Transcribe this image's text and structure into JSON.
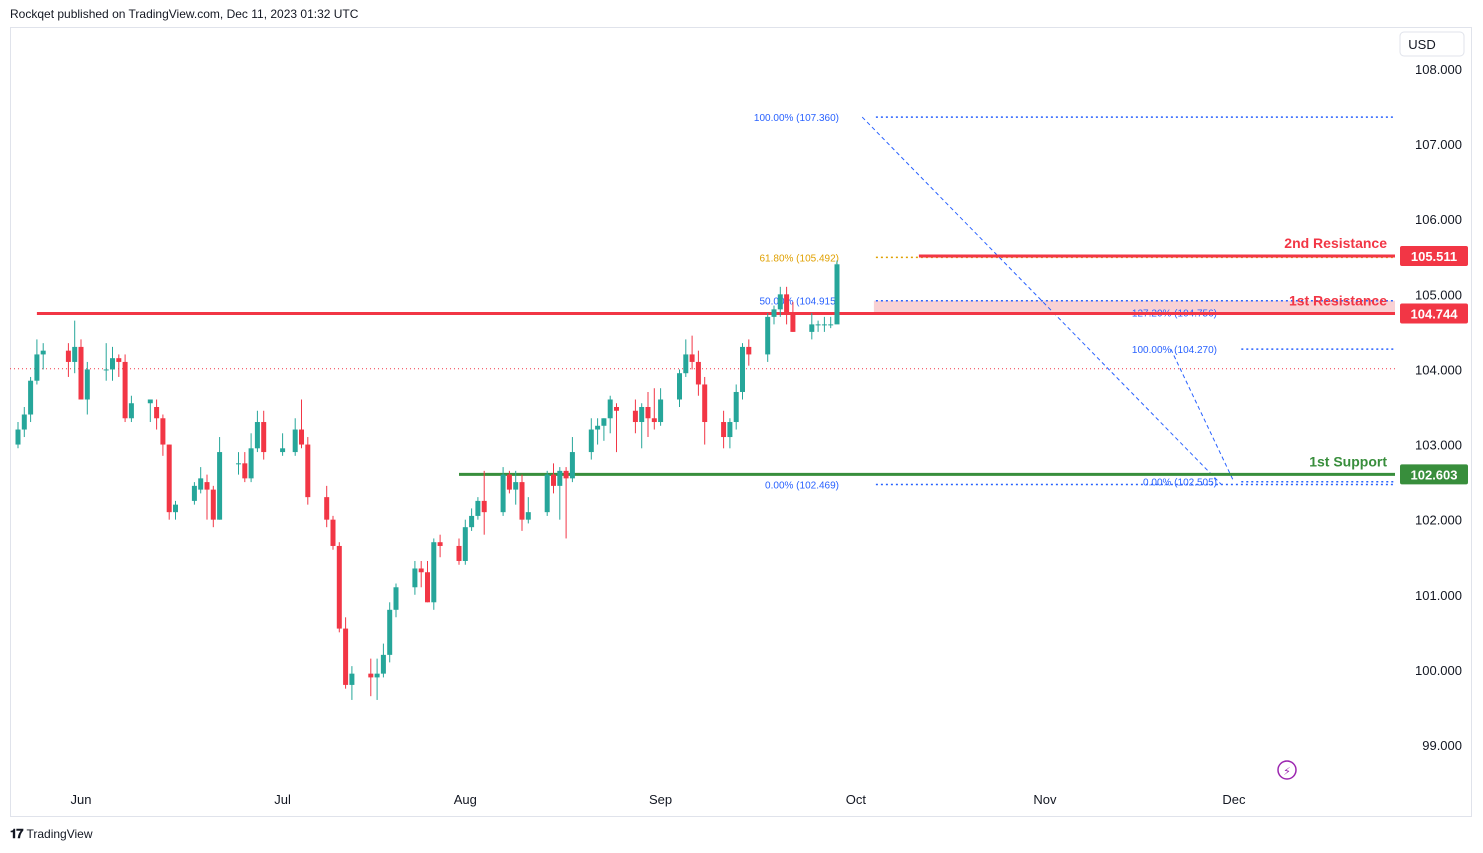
{
  "header": {
    "text": "Rockqet published on TradingView.com, Dec 11, 2023 01:32 UTC"
  },
  "footer": {
    "brand": "TradingView",
    "logo_icon": "tradingview-logo-icon"
  },
  "currency": "USD",
  "colors": {
    "up": "#26a69a",
    "down": "#f23645",
    "resistance": "#f23645",
    "support": "#388e3c",
    "fib": "#2962ff",
    "fib_gold": "#e0a000",
    "dots": "#f23645"
  },
  "chart_data": {
    "type": "candlestick",
    "x_labels": [
      {
        "label": "Jun",
        "date": "2023-06-01"
      },
      {
        "label": "Jul",
        "date": "2023-07-03"
      },
      {
        "label": "Aug",
        "date": "2023-08-01"
      },
      {
        "label": "Sep",
        "date": "2023-09-01"
      },
      {
        "label": "Oct",
        "date": "2023-10-02"
      },
      {
        "label": "Nov",
        "date": "2023-11-01"
      },
      {
        "label": "Dec",
        "date": "2023-12-01"
      }
    ],
    "y_ticks": [
      "108.000",
      "107.000",
      "106.000",
      "105.000",
      "104.000",
      "103.000",
      "102.000",
      "101.000",
      "100.000",
      "99.000"
    ],
    "ylim": [
      98.3,
      108.6
    ],
    "grid": false,
    "last_price": 104.01,
    "levels": [
      {
        "label": "2nd Resistance",
        "value": 105.511,
        "value_text": "105.511",
        "color": "#f23645",
        "from_date": "2023-10-12"
      },
      {
        "label": "1st Resistance",
        "value": 104.744,
        "value_text": "104.744",
        "color": "#f23645",
        "from_date": "2023-05-25"
      },
      {
        "label": "1st Support",
        "value": 102.603,
        "value_text": "102.603",
        "color": "#388e3c",
        "from_date": "2023-07-31"
      }
    ],
    "fib_labels": [
      {
        "text": "100.00% (107.360)",
        "value": 107.36,
        "date": "2023-09-29",
        "color": "#2962ff"
      },
      {
        "text": "61.80% (105.492)",
        "value": 105.492,
        "date": "2023-09-29",
        "color": "#e0a000"
      },
      {
        "text": "50.00% (104.915)",
        "value": 104.915,
        "date": "2023-09-29",
        "color": "#2962ff"
      },
      {
        "text": "0.00% (102.469)",
        "value": 102.469,
        "date": "2023-09-29",
        "color": "#2962ff"
      },
      {
        "text": "127.20% (104.756)",
        "value": 104.756,
        "date": "2023-11-28",
        "color": "#2962ff"
      },
      {
        "text": "100.00% (104.270)",
        "value": 104.27,
        "date": "2023-11-28",
        "color": "#2962ff"
      },
      {
        "text": "0.00% (102.505)",
        "value": 102.505,
        "date": "2023-11-28",
        "color": "#2962ff"
      }
    ],
    "candles": [
      {
        "d": "2023-05-22",
        "o": 103.0,
        "h": 103.3,
        "l": 102.95,
        "c": 103.2
      },
      {
        "d": "2023-05-23",
        "o": 103.2,
        "h": 103.5,
        "l": 103.1,
        "c": 103.4
      },
      {
        "d": "2023-05-24",
        "o": 103.4,
        "h": 103.9,
        "l": 103.3,
        "c": 103.85
      },
      {
        "d": "2023-05-25",
        "o": 103.85,
        "h": 104.4,
        "l": 103.8,
        "c": 104.2
      },
      {
        "d": "2023-05-26",
        "o": 104.2,
        "h": 104.35,
        "l": 104.0,
        "c": 104.25
      },
      {
        "d": "2023-05-30",
        "o": 104.25,
        "h": 104.35,
        "l": 103.9,
        "c": 104.1
      },
      {
        "d": "2023-05-31",
        "o": 104.1,
        "h": 104.65,
        "l": 103.95,
        "c": 104.3
      },
      {
        "d": "2023-06-01",
        "o": 104.3,
        "h": 104.4,
        "l": 103.6,
        "c": 103.6
      },
      {
        "d": "2023-06-02",
        "o": 103.6,
        "h": 104.1,
        "l": 103.4,
        "c": 104.0
      },
      {
        "d": "2023-06-05",
        "o": 104.0,
        "h": 104.35,
        "l": 103.85,
        "c": 104.0
      },
      {
        "d": "2023-06-06",
        "o": 104.0,
        "h": 104.3,
        "l": 103.85,
        "c": 104.15
      },
      {
        "d": "2023-06-07",
        "o": 104.15,
        "h": 104.2,
        "l": 103.9,
        "c": 104.1
      },
      {
        "d": "2023-06-08",
        "o": 104.1,
        "h": 104.2,
        "l": 103.3,
        "c": 103.35
      },
      {
        "d": "2023-06-09",
        "o": 103.35,
        "h": 103.65,
        "l": 103.3,
        "c": 103.55
      },
      {
        "d": "2023-06-12",
        "o": 103.55,
        "h": 103.6,
        "l": 103.3,
        "c": 103.6
      },
      {
        "d": "2023-06-13",
        "o": 103.5,
        "h": 103.6,
        "l": 103.2,
        "c": 103.35
      },
      {
        "d": "2023-06-14",
        "o": 103.35,
        "h": 103.4,
        "l": 102.85,
        "c": 103.0
      },
      {
        "d": "2023-06-15",
        "o": 103.0,
        "h": 103.0,
        "l": 102.0,
        "c": 102.1
      },
      {
        "d": "2023-06-16",
        "o": 102.1,
        "h": 102.25,
        "l": 102.0,
        "c": 102.2
      },
      {
        "d": "2023-06-19",
        "o": 102.25,
        "h": 102.5,
        "l": 102.2,
        "c": 102.45
      },
      {
        "d": "2023-06-20",
        "o": 102.4,
        "h": 102.7,
        "l": 102.35,
        "c": 102.55
      },
      {
        "d": "2023-06-21",
        "o": 102.5,
        "h": 102.6,
        "l": 102.0,
        "c": 102.4
      },
      {
        "d": "2023-06-22",
        "o": 102.4,
        "h": 102.45,
        "l": 101.9,
        "c": 102.0
      },
      {
        "d": "2023-06-23",
        "o": 102.0,
        "h": 103.1,
        "l": 102.0,
        "c": 102.9
      },
      {
        "d": "2023-06-26",
        "o": 102.75,
        "h": 102.9,
        "l": 102.6,
        "c": 102.75
      },
      {
        "d": "2023-06-27",
        "o": 102.75,
        "h": 102.9,
        "l": 102.5,
        "c": 102.55
      },
      {
        "d": "2023-06-28",
        "o": 102.55,
        "h": 103.15,
        "l": 102.5,
        "c": 102.95
      },
      {
        "d": "2023-06-29",
        "o": 102.95,
        "h": 103.45,
        "l": 102.9,
        "c": 103.3
      },
      {
        "d": "2023-06-30",
        "o": 103.3,
        "h": 103.45,
        "l": 102.8,
        "c": 102.9
      },
      {
        "d": "2023-07-03",
        "o": 102.9,
        "h": 103.15,
        "l": 102.85,
        "c": 102.95
      },
      {
        "d": "2023-07-05",
        "o": 102.9,
        "h": 103.35,
        "l": 102.85,
        "c": 103.2
      },
      {
        "d": "2023-07-06",
        "o": 103.2,
        "h": 103.6,
        "l": 102.95,
        "c": 103.0
      },
      {
        "d": "2023-07-07",
        "o": 103.0,
        "h": 103.1,
        "l": 102.2,
        "c": 102.3
      },
      {
        "d": "2023-07-10",
        "o": 102.3,
        "h": 102.45,
        "l": 101.9,
        "c": 102.0
      },
      {
        "d": "2023-07-11",
        "o": 102.0,
        "h": 102.05,
        "l": 101.6,
        "c": 101.65
      },
      {
        "d": "2023-07-12",
        "o": 101.65,
        "h": 101.7,
        "l": 100.5,
        "c": 100.55
      },
      {
        "d": "2023-07-13",
        "o": 100.55,
        "h": 100.7,
        "l": 99.75,
        "c": 99.8
      },
      {
        "d": "2023-07-14",
        "o": 99.8,
        "h": 100.05,
        "l": 99.6,
        "c": 99.95
      },
      {
        "d": "2023-07-17",
        "o": 99.95,
        "h": 100.15,
        "l": 99.65,
        "c": 99.9
      },
      {
        "d": "2023-07-18",
        "o": 99.9,
        "h": 100.15,
        "l": 99.6,
        "c": 99.95
      },
      {
        "d": "2023-07-19",
        "o": 99.95,
        "h": 100.35,
        "l": 99.9,
        "c": 100.2
      },
      {
        "d": "2023-07-20",
        "o": 100.2,
        "h": 100.9,
        "l": 100.1,
        "c": 100.8
      },
      {
        "d": "2023-07-21",
        "o": 100.8,
        "h": 101.15,
        "l": 100.7,
        "c": 101.1
      },
      {
        "d": "2023-07-24",
        "o": 101.1,
        "h": 101.45,
        "l": 101.0,
        "c": 101.35
      },
      {
        "d": "2023-07-25",
        "o": 101.35,
        "h": 101.45,
        "l": 101.1,
        "c": 101.3
      },
      {
        "d": "2023-07-26",
        "o": 101.3,
        "h": 101.45,
        "l": 100.9,
        "c": 100.9
      },
      {
        "d": "2023-07-27",
        "o": 100.9,
        "h": 101.75,
        "l": 100.8,
        "c": 101.7
      },
      {
        "d": "2023-07-28",
        "o": 101.7,
        "h": 101.8,
        "l": 101.5,
        "c": 101.65
      },
      {
        "d": "2023-07-31",
        "o": 101.65,
        "h": 101.75,
        "l": 101.4,
        "c": 101.45
      },
      {
        "d": "2023-08-01",
        "o": 101.45,
        "h": 102.0,
        "l": 101.4,
        "c": 101.9
      },
      {
        "d": "2023-08-02",
        "o": 101.9,
        "h": 102.15,
        "l": 101.85,
        "c": 102.05
      },
      {
        "d": "2023-08-03",
        "o": 102.05,
        "h": 102.3,
        "l": 102.0,
        "c": 102.25
      },
      {
        "d": "2023-08-04",
        "o": 102.25,
        "h": 102.65,
        "l": 101.8,
        "c": 102.1
      },
      {
        "d": "2023-08-07",
        "o": 102.1,
        "h": 102.7,
        "l": 102.05,
        "c": 102.6
      },
      {
        "d": "2023-08-08",
        "o": 102.6,
        "h": 102.65,
        "l": 102.35,
        "c": 102.4
      },
      {
        "d": "2023-08-09",
        "o": 102.4,
        "h": 102.65,
        "l": 102.2,
        "c": 102.5
      },
      {
        "d": "2023-08-10",
        "o": 102.5,
        "h": 102.6,
        "l": 101.85,
        "c": 102.0
      },
      {
        "d": "2023-08-11",
        "o": 102.0,
        "h": 102.3,
        "l": 101.95,
        "c": 102.1
      },
      {
        "d": "2023-08-14",
        "o": 102.1,
        "h": 102.65,
        "l": 102.05,
        "c": 102.6
      },
      {
        "d": "2023-08-15",
        "o": 102.6,
        "h": 102.75,
        "l": 102.35,
        "c": 102.45
      },
      {
        "d": "2023-08-16",
        "o": 102.45,
        "h": 102.7,
        "l": 102.0,
        "c": 102.65
      },
      {
        "d": "2023-08-17",
        "o": 102.65,
        "h": 102.7,
        "l": 101.75,
        "c": 102.55
      },
      {
        "d": "2023-08-18",
        "o": 102.55,
        "h": 103.1,
        "l": 102.5,
        "c": 102.9
      },
      {
        "d": "2023-08-21",
        "o": 102.9,
        "h": 103.35,
        "l": 102.8,
        "c": 103.2
      },
      {
        "d": "2023-08-22",
        "o": 103.2,
        "h": 103.35,
        "l": 103.0,
        "c": 103.25
      },
      {
        "d": "2023-08-23",
        "o": 103.25,
        "h": 103.35,
        "l": 103.05,
        "c": 103.35
      },
      {
        "d": "2023-08-24",
        "o": 103.35,
        "h": 103.65,
        "l": 103.15,
        "c": 103.6
      },
      {
        "d": "2023-08-25",
        "o": 103.5,
        "h": 103.55,
        "l": 102.9,
        "c": 103.45
      },
      {
        "d": "2023-08-28",
        "o": 103.45,
        "h": 103.6,
        "l": 103.15,
        "c": 103.3
      },
      {
        "d": "2023-08-29",
        "o": 103.3,
        "h": 103.55,
        "l": 102.95,
        "c": 103.5
      },
      {
        "d": "2023-08-30",
        "o": 103.5,
        "h": 103.7,
        "l": 103.1,
        "c": 103.35
      },
      {
        "d": "2023-08-31",
        "o": 103.35,
        "h": 103.75,
        "l": 103.2,
        "c": 103.3
      },
      {
        "d": "2023-09-01",
        "o": 103.3,
        "h": 103.75,
        "l": 103.25,
        "c": 103.6
      },
      {
        "d": "2023-09-04",
        "o": 103.6,
        "h": 104.0,
        "l": 103.5,
        "c": 103.95
      },
      {
        "d": "2023-09-05",
        "o": 103.95,
        "h": 104.4,
        "l": 103.9,
        "c": 104.2
      },
      {
        "d": "2023-09-06",
        "o": 104.2,
        "h": 104.45,
        "l": 104.0,
        "c": 104.1
      },
      {
        "d": "2023-09-07",
        "o": 104.1,
        "h": 104.25,
        "l": 103.65,
        "c": 103.8
      },
      {
        "d": "2023-09-08",
        "o": 103.8,
        "h": 103.9,
        "l": 103.0,
        "c": 103.3
      },
      {
        "d": "2023-09-11",
        "o": 103.3,
        "h": 103.45,
        "l": 102.95,
        "c": 103.1
      },
      {
        "d": "2023-09-12",
        "o": 103.1,
        "h": 103.35,
        "l": 102.95,
        "c": 103.3
      },
      {
        "d": "2023-09-13",
        "o": 103.3,
        "h": 103.8,
        "l": 103.2,
        "c": 103.7
      },
      {
        "d": "2023-09-14",
        "o": 103.7,
        "h": 104.35,
        "l": 103.6,
        "c": 104.3
      },
      {
        "d": "2023-09-15",
        "o": 104.3,
        "h": 104.4,
        "l": 104.05,
        "c": 104.2
      },
      {
        "d": "2023-09-18",
        "o": 104.2,
        "h": 104.75,
        "l": 104.1,
        "c": 104.7
      },
      {
        "d": "2023-09-19",
        "o": 104.7,
        "h": 104.85,
        "l": 104.6,
        "c": 104.8
      },
      {
        "d": "2023-09-20",
        "o": 104.8,
        "h": 105.1,
        "l": 104.7,
        "c": 105.0
      },
      {
        "d": "2023-09-21",
        "o": 105.0,
        "h": 105.1,
        "l": 104.6,
        "c": 104.75
      },
      {
        "d": "2023-09-22",
        "o": 104.75,
        "h": 104.9,
        "l": 104.5,
        "c": 104.5
      },
      {
        "d": "2023-09-25",
        "o": 104.5,
        "h": 104.75,
        "l": 104.4,
        "c": 104.6
      },
      {
        "d": "2023-09-26",
        "o": 104.6,
        "h": 104.65,
        "l": 104.5,
        "c": 104.6
      },
      {
        "d": "2023-09-27",
        "o": 104.6,
        "h": 104.7,
        "l": 104.5,
        "c": 104.6
      },
      {
        "d": "2023-09-28",
        "o": 104.6,
        "h": 104.7,
        "l": 104.55,
        "c": 104.6
      },
      {
        "d": "2023-09-29",
        "o": 104.6,
        "h": 105.45,
        "l": 104.7,
        "c": 105.4
      }
    ]
  }
}
